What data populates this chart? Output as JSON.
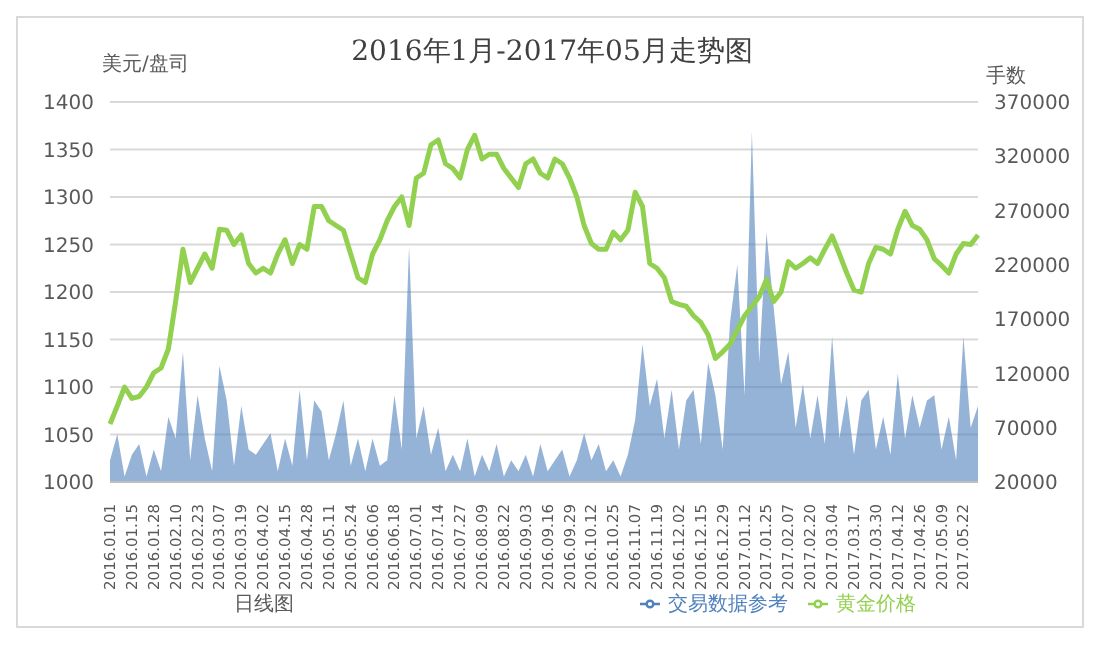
{
  "chart_data": {
    "type": "line",
    "title": "2016年1月-2017年05月走势图",
    "ylabel": "美元/盘司",
    "y2label": "手数",
    "annotations": [
      "日线图"
    ],
    "categories": [
      "2016.01.01",
      null,
      null,
      "2016.01.15",
      null,
      null,
      "2016.01.28",
      null,
      null,
      "2016.02.10",
      null,
      null,
      "2016.02.23",
      null,
      null,
      "2016.03.07",
      null,
      null,
      "2016.03.19",
      null,
      null,
      "2016.04.02",
      null,
      null,
      "2016.04.15",
      null,
      null,
      "2016.04.28",
      null,
      null,
      "2016.05.11",
      null,
      null,
      "2016.05.24",
      null,
      null,
      "2016.06.06",
      null,
      null,
      "2016.06.18",
      null,
      null,
      "2016.07.01",
      null,
      null,
      "2016.07.14",
      null,
      null,
      "2016.07.27",
      null,
      null,
      "2016.08.09",
      null,
      null,
      "2016.08.22",
      null,
      null,
      "2016.09.03",
      null,
      null,
      "2016.09.16",
      null,
      null,
      "2016.09.29",
      null,
      null,
      "2016.10.12",
      null,
      null,
      "2016.10.25",
      null,
      null,
      "2016.11.07",
      null,
      null,
      "2016.11.19",
      null,
      null,
      "2016.12.02",
      null,
      null,
      "2016.12.15",
      null,
      null,
      "2016.12.29",
      null,
      null,
      "2017.01.12",
      null,
      null,
      "2017.01.25",
      null,
      null,
      "2017.02.07",
      null,
      null,
      "2017.02.20",
      null,
      null,
      "2017.03.04",
      null,
      null,
      "2017.03.17",
      null,
      null,
      "2017.03.30",
      null,
      null,
      "2017.04.12",
      null,
      null,
      "2017.04.26",
      null,
      null,
      "2017.05.09",
      null,
      null,
      "2017.05.22",
      null,
      null
    ],
    "series": [
      {
        "name": "交易数据参考",
        "type": "area",
        "axis": "y2",
        "color": "#4f81bd",
        "values": [
          40000,
          64000,
          25000,
          45000,
          55000,
          25000,
          50000,
          30000,
          80000,
          60000,
          140000,
          40000,
          100000,
          60000,
          30000,
          127000,
          95000,
          35000,
          90000,
          50000,
          45000,
          55000,
          65000,
          30000,
          60000,
          35000,
          105000,
          40000,
          95000,
          85000,
          40000,
          65000,
          95000,
          35000,
          60000,
          30000,
          60000,
          35000,
          40000,
          100000,
          50000,
          237000,
          60000,
          90000,
          45000,
          70000,
          30000,
          45000,
          30000,
          60000,
          25000,
          45000,
          30000,
          55000,
          25000,
          40000,
          30000,
          45000,
          25000,
          55000,
          30000,
          40000,
          50000,
          25000,
          40000,
          65000,
          40000,
          55000,
          30000,
          40000,
          25000,
          45000,
          77000,
          147000,
          90000,
          115000,
          60000,
          105000,
          50000,
          95000,
          105000,
          55000,
          130000,
          100000,
          50000,
          167000,
          220000,
          100000,
          343000,
          130000,
          250000,
          180000,
          110000,
          140000,
          70000,
          110000,
          60000,
          100000,
          55000,
          154000,
          60000,
          100000,
          45000,
          95000,
          105000,
          50000,
          80000,
          45000,
          120000,
          60000,
          100000,
          70000,
          95000,
          100000,
          50000,
          80000,
          40000,
          154000,
          70000,
          90000
        ]
      },
      {
        "name": "黄金价格",
        "color": "#92d050",
        "values": [
          1061,
          1080,
          1100,
          1088,
          1090,
          1100,
          1115,
          1120,
          1140,
          1190,
          1245,
          1210,
          1225,
          1240,
          1225,
          1266,
          1265,
          1250,
          1260,
          1230,
          1220,
          1225,
          1220,
          1240,
          1255,
          1230,
          1250,
          1245,
          1290,
          1290,
          1275,
          1270,
          1265,
          1240,
          1215,
          1210,
          1240,
          1255,
          1275,
          1290,
          1300,
          1270,
          1320,
          1325,
          1355,
          1360,
          1335,
          1330,
          1320,
          1350,
          1365,
          1340,
          1345,
          1345,
          1330,
          1320,
          1310,
          1335,
          1340,
          1325,
          1320,
          1340,
          1335,
          1320,
          1300,
          1270,
          1251,
          1245,
          1245,
          1263,
          1255,
          1265,
          1305,
          1290,
          1230,
          1225,
          1215,
          1190,
          1187,
          1185,
          1175,
          1168,
          1155,
          1130,
          1137,
          1145,
          1160,
          1175,
          1185,
          1195,
          1213,
          1190,
          1200,
          1232,
          1225,
          1230,
          1236,
          1230,
          1245,
          1259,
          1240,
          1220,
          1202,
          1200,
          1230,
          1247,
          1245,
          1240,
          1266,
          1285,
          1270,
          1266,
          1255,
          1235,
          1228,
          1220,
          1240,
          1251,
          1250,
          1260
        ]
      }
    ],
    "ylim": [
      1000,
      1400
    ],
    "yticks": [
      1000,
      1050,
      1100,
      1150,
      1200,
      1250,
      1300,
      1350,
      1400
    ],
    "y2lim": [
      20000,
      370000
    ],
    "y2ticks": [
      20000,
      70000,
      120000,
      170000,
      220000,
      270000,
      320000,
      370000
    ],
    "grid": "y",
    "legend": "bottom",
    "marker": "none"
  }
}
